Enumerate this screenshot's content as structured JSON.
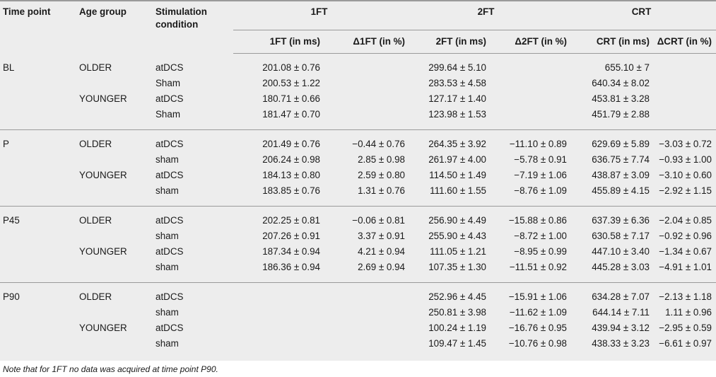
{
  "header": {
    "time_point": "Time point",
    "age_group": "Age group",
    "stimulation_condition_line1": "Stimulation",
    "stimulation_condition_line2": "condition",
    "groups": [
      "1FT",
      "2FT",
      "CRT"
    ],
    "subcols": [
      "1FT (in ms)",
      "Δ1FT (in %)",
      "2FT (in ms)",
      "Δ2FT (in %)",
      "CRT (in ms)",
      "ΔCRT (in %)"
    ]
  },
  "sections": [
    {
      "time_point": "BL",
      "rows": [
        {
          "age": "OLDER",
          "cond": "atDCS",
          "v": [
            "201.08 ± 0.76",
            "",
            "299.64 ± 5.10",
            "",
            "655.10 ± 7",
            ""
          ]
        },
        {
          "age": "",
          "cond": "Sham",
          "v": [
            "200.53 ± 1.22",
            "",
            "283.53 ± 4.58",
            "",
            "640.34 ± 8.02",
            ""
          ]
        },
        {
          "age": "YOUNGER",
          "cond": "atDCS",
          "v": [
            "180.71 ± 0.66",
            "",
            "127.17 ± 1.40",
            "",
            "453.81 ± 3.28",
            ""
          ]
        },
        {
          "age": "",
          "cond": "Sham",
          "v": [
            "181.47 ± 0.70",
            "",
            "123.98 ± 1.53",
            "",
            "451.79 ± 2.88",
            ""
          ]
        }
      ]
    },
    {
      "time_point": "P",
      "rows": [
        {
          "age": "OLDER",
          "cond": "atDCS",
          "v": [
            "201.49 ± 0.76",
            "−0.44 ± 0.76",
            "264.35 ± 3.92",
            "−11.10 ± 0.89",
            "629.69 ± 5.89",
            "−3.03 ± 0.72"
          ]
        },
        {
          "age": "",
          "cond": "sham",
          "v": [
            "206.24 ± 0.98",
            "2.85 ± 0.98",
            "261.97 ± 4.00",
            "−5.78 ± 0.91",
            "636.75 ± 7.74",
            "−0.93 ± 1.00"
          ]
        },
        {
          "age": "YOUNGER",
          "cond": "atDCS",
          "v": [
            "184.13 ± 0.80",
            "2.59 ± 0.80",
            "114.50 ± 1.49",
            "−7.19 ± 1.06",
            "438.87 ± 3.09",
            "−3.10 ± 0.60"
          ]
        },
        {
          "age": "",
          "cond": "sham",
          "v": [
            "183.85 ± 0.76",
            "1.31 ± 0.76",
            "111.60 ± 1.55",
            "−8.76 ± 1.09",
            "455.89 ± 4.15",
            "−2.92 ± 1.15"
          ]
        }
      ]
    },
    {
      "time_point": "P45",
      "rows": [
        {
          "age": "OLDER",
          "cond": "atDCS",
          "v": [
            "202.25 ± 0.81",
            "−0.06 ± 0.81",
            "256.90 ± 4.49",
            "−15.88 ± 0.86",
            "637.39 ± 6.36",
            "−2.04 ± 0.85"
          ]
        },
        {
          "age": "",
          "cond": "sham",
          "v": [
            "207.26 ± 0.91",
            "3.37 ± 0.91",
            "255.90 ± 4.43",
            "−8.72 ± 1.00",
            "630.58 ± 7.17",
            "−0.92 ± 0.96"
          ]
        },
        {
          "age": "YOUNGER",
          "cond": "atDCS",
          "v": [
            "187.34 ± 0.94",
            "4.21 ± 0.94",
            "111.05 ± 1.21",
            "−8.95 ± 0.99",
            "447.10 ± 3.40",
            "−1.34 ± 0.67"
          ]
        },
        {
          "age": "",
          "cond": "sham",
          "v": [
            "186.36 ± 0.94",
            "2.69 ± 0.94",
            "107.35 ± 1.30",
            "−11.51 ± 0.92",
            "445.28 ± 3.03",
            "−4.91 ± 1.01"
          ]
        }
      ]
    },
    {
      "time_point": "P90",
      "rows": [
        {
          "age": "OLDER",
          "cond": "atDCS",
          "v": [
            "",
            "",
            "252.96 ± 4.45",
            "−15.91 ± 1.06",
            "634.28 ± 7.07",
            "−2.13 ± 1.18"
          ]
        },
        {
          "age": "",
          "cond": "sham",
          "v": [
            "",
            "",
            "250.81 ± 3.98",
            "−11.62 ± 1.09",
            "644.14 ± 7.11",
            "1.11 ± 0.96"
          ]
        },
        {
          "age": "YOUNGER",
          "cond": "atDCS",
          "v": [
            "",
            "",
            "100.24 ± 1.19",
            "−16.76 ± 0.95",
            "439.94 ± 3.12",
            "−2.95 ± 0.59"
          ]
        },
        {
          "age": "",
          "cond": "sham",
          "v": [
            "",
            "",
            "109.47 ± 1.45",
            "−10.76 ± 0.98",
            "438.33 ± 3.23",
            "−6.61 ± 0.97"
          ]
        }
      ]
    }
  ],
  "footnote": "Note that for 1FT no data was acquired at time point P90."
}
